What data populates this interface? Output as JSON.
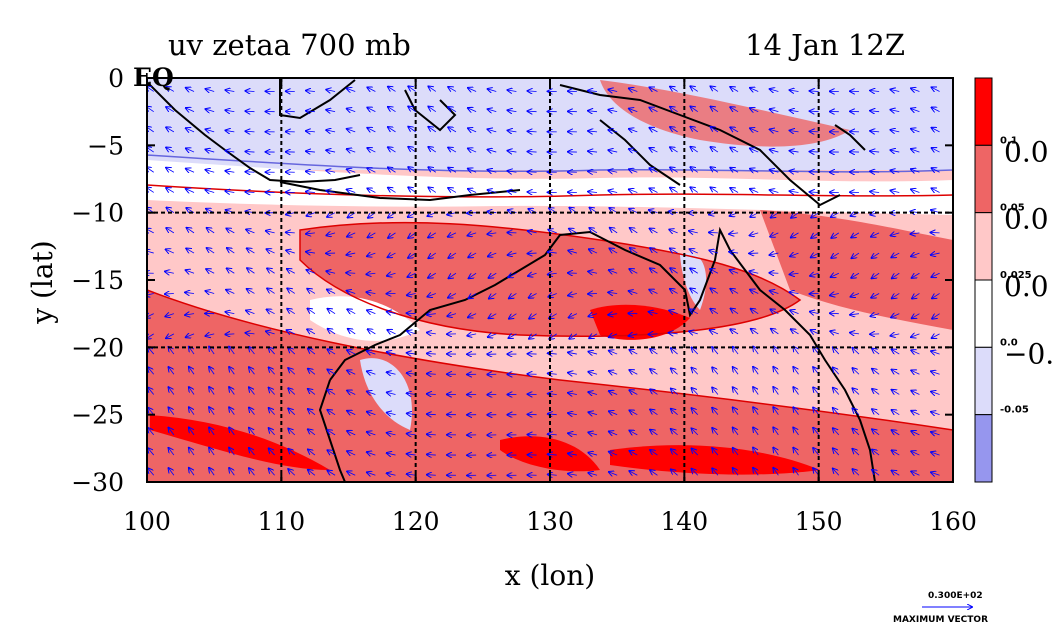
{
  "title": {
    "left": "uv zetaa 700 mb",
    "right": "14 Jan 12Z"
  },
  "axes": {
    "xlabel": "x (lon)",
    "ylabel": "y (lat)",
    "xticks": [
      "100",
      "110",
      "120",
      "130",
      "140",
      "150",
      "160"
    ],
    "yticks": [
      "0",
      "−5",
      "−10",
      "−15",
      "−20",
      "−25",
      "−30"
    ],
    "eq_label": "EQ",
    "xlim": [
      100,
      160
    ],
    "ylim": [
      -30,
      0
    ],
    "grid_lon": [
      110,
      120,
      130,
      140,
      150
    ],
    "grid_lat": [
      -10,
      -20
    ]
  },
  "colorbar": {
    "colors": [
      "#ff0000",
      "#ee6565",
      "#ffc8c8",
      "#ffffff",
      "#dcdcfa",
      "#9696ee"
    ],
    "boundary_labels": [
      "0.1",
      "0.05",
      "0.025",
      "0.0",
      "-0.05"
    ],
    "side_labels": [
      "0.0",
      "0.0",
      "0.0",
      "−0."
    ]
  },
  "vector_legend": {
    "value": "0.300E+02",
    "label": "MAXIMUM VECTOR"
  },
  "colors": {
    "coast": "#000000",
    "vectors": "#0000ff",
    "contour_red": "#dd0000",
    "contour_blue": "#6666dd"
  }
}
